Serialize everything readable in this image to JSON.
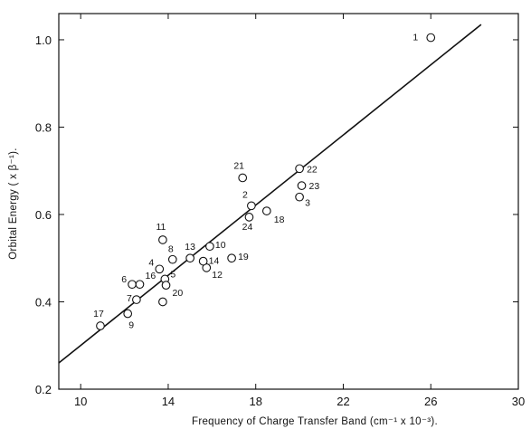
{
  "chart_data": {
    "type": "scatter",
    "xlabel": "Frequency of Charge Transfer Band (cm⁻¹ x 10⁻³).",
    "ylabel": "Orbital Energy ( x β⁻¹).",
    "xlim": [
      9,
      30
    ],
    "ylim": [
      0.2,
      1.06
    ],
    "xticks": [
      10,
      14,
      18,
      22,
      26,
      30
    ],
    "yticks": [
      0.2,
      0.4,
      0.6,
      0.8,
      1.0
    ],
    "xtick_labels": [
      "10",
      "14",
      "18",
      "22",
      "26",
      "30"
    ],
    "ytick_labels": [
      "0.2",
      "0.4",
      "0.6",
      "0.8",
      "1.0"
    ],
    "grid": false,
    "points": [
      {
        "label": "1",
        "x": 26.0,
        "y": 1.005
      },
      {
        "label": "2",
        "x": 17.8,
        "y": 0.62
      },
      {
        "label": "3",
        "x": 20.0,
        "y": 0.64
      },
      {
        "label": "4",
        "x": 13.6,
        "y": 0.475
      },
      {
        "label": "5",
        "x": 13.85,
        "y": 0.452
      },
      {
        "label": "6",
        "x": 12.35,
        "y": 0.44
      },
      {
        "label": "7",
        "x": 12.55,
        "y": 0.405
      },
      {
        "label": "8",
        "x": 14.2,
        "y": 0.497
      },
      {
        "label": "9",
        "x": 12.15,
        "y": 0.373
      },
      {
        "label": "10",
        "x": 15.9,
        "y": 0.527
      },
      {
        "label": "11",
        "x": 13.75,
        "y": 0.542
      },
      {
        "label": "12",
        "x": 15.75,
        "y": 0.478
      },
      {
        "label": "13",
        "x": 15.0,
        "y": 0.5
      },
      {
        "label": "14",
        "x": 15.6,
        "y": 0.493
      },
      {
        "label": "16",
        "x": 12.7,
        "y": 0.44
      },
      {
        "label": "17",
        "x": 10.9,
        "y": 0.345
      },
      {
        "label": "18",
        "x": 18.5,
        "y": 0.608
      },
      {
        "label": "19",
        "x": 16.9,
        "y": 0.5
      },
      {
        "label": "20",
        "x": 13.9,
        "y": 0.438
      },
      {
        "label": "21",
        "x": 17.4,
        "y": 0.684
      },
      {
        "label": "22",
        "x": 20.0,
        "y": 0.705
      },
      {
        "label": "23",
        "x": 20.1,
        "y": 0.666
      },
      {
        "label": "24",
        "x": 17.7,
        "y": 0.594
      },
      {
        "label": "",
        "x": 13.75,
        "y": 0.4
      }
    ],
    "fit_line": {
      "x": [
        9,
        28.3
      ],
      "y": [
        0.26,
        1.035
      ]
    }
  }
}
